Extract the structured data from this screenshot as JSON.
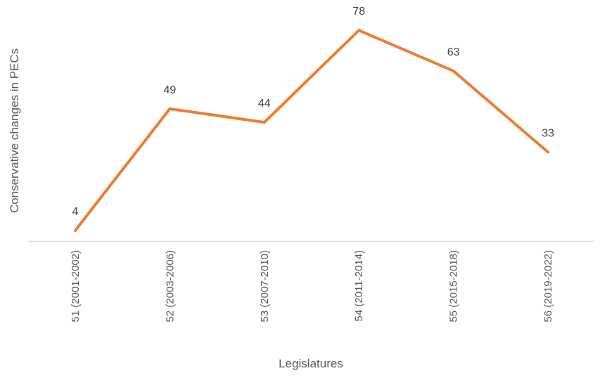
{
  "chart_data": {
    "type": "line",
    "title": "",
    "xlabel": "Legislatures",
    "ylabel": "Conservative changes in PECs",
    "categories": [
      "51 (2001-2002)",
      "52 (2003-2006)",
      "53 (2007-2010)",
      "54 (2011-2014)",
      "55 (2015-2018)",
      "56 (2019-2022)"
    ],
    "values": [
      4,
      49,
      44,
      78,
      63,
      33
    ],
    "data_labels": [
      "4",
      "49",
      "44",
      "78",
      "63",
      "33"
    ],
    "ylim": [
      0,
      80
    ],
    "grid": false,
    "legend": "none",
    "line_color": "#ED7D31",
    "axis_color": "#D9D9D9"
  }
}
